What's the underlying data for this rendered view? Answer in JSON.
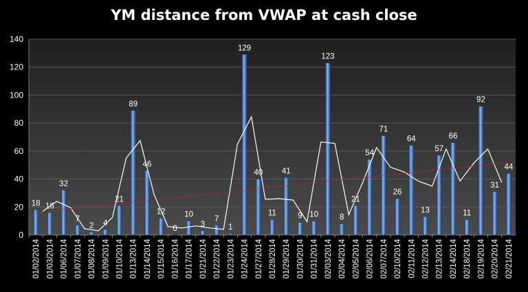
{
  "chart_data": {
    "type": "bar",
    "title": "YM distance from VWAP at cash close",
    "xlabel": "",
    "ylabel": "",
    "ylim": [
      0,
      140
    ],
    "yticks": [
      0,
      20,
      40,
      60,
      80,
      100,
      120,
      140
    ],
    "grid": true,
    "legend": "none",
    "categories": [
      "01/02/2014",
      "01/03/2014",
      "01/06/2014",
      "01/07/2014",
      "01/08/2014",
      "01/09/2014",
      "01/10/2014",
      "01/13/2014",
      "01/14/2014",
      "01/15/2014",
      "01/16/2014",
      "01/17/2014",
      "01/21/2014",
      "01/22/2014",
      "01/23/2014",
      "01/24/2014",
      "01/27/2014",
      "01/28/2014",
      "01/29/2014",
      "01/30/2014",
      "01/31/2014",
      "02/03/2014",
      "02/04/2014",
      "02/05/2014",
      "02/06/2014",
      "02/07/2014",
      "02/10/2014",
      "02/11/2014",
      "02/12/2014",
      "02/13/2014",
      "02/14/2014",
      "02/18/2014",
      "02/19/2014",
      "02/20/2014",
      "02/21/2014"
    ],
    "values": [
      18,
      16,
      32,
      7,
      2,
      4,
      21,
      89,
      46,
      12,
      0,
      10,
      3,
      7,
      1,
      129,
      40,
      11,
      41,
      9,
      10,
      123,
      8,
      21,
      54,
      71,
      26,
      64,
      13,
      57,
      66,
      11,
      92,
      31,
      44
    ],
    "colors": {
      "background": "#000000",
      "plot_background": "#3a3a3a",
      "grid": "#5a5a5a",
      "bar": "#3d75c2",
      "bar_light": "#8fb6ee",
      "bar_dark": "#1b3f78",
      "moving_average": "#ffffff",
      "trendline": "#c0262a",
      "text": "#ffffff"
    },
    "overlays": [
      "moving-average-line",
      "linear-trendline"
    ]
  }
}
